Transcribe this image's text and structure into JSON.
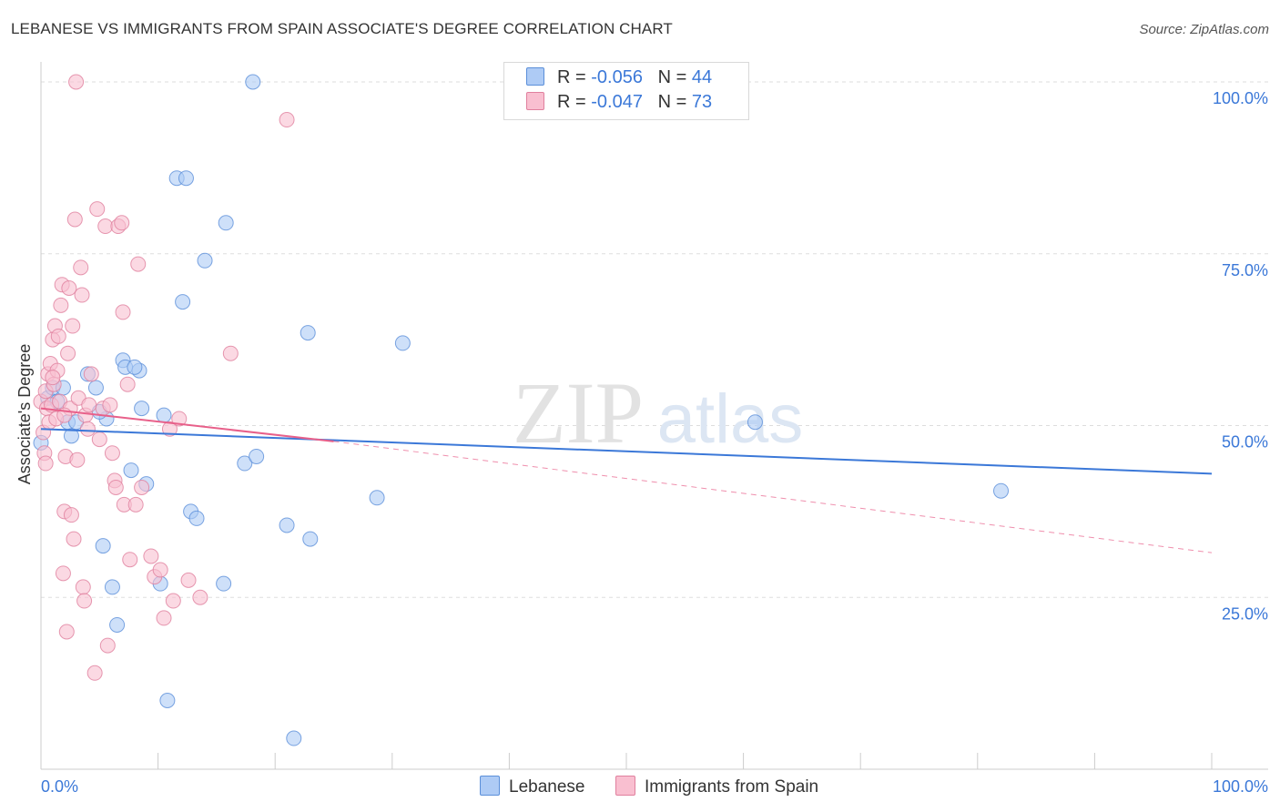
{
  "title": "LEBANESE VS IMMIGRANTS FROM SPAIN ASSOCIATE'S DEGREE CORRELATION CHART",
  "source": "Source: ZipAtlas.com",
  "watermark": {
    "zip": "ZIP",
    "atlas": "atlas"
  },
  "legend": {
    "series": [
      {
        "r_label": "R = ",
        "r_value": "-0.056",
        "n_label": "N = ",
        "n_value": "44",
        "color": "#aecbf5",
        "border": "#5b8fd9"
      },
      {
        "r_label": "R = ",
        "r_value": "-0.047",
        "n_label": "N = ",
        "n_value": "73",
        "color": "#f9bfd0",
        "border": "#e0809e"
      }
    ]
  },
  "bottom_legend": [
    "Lebanese",
    "Immigrants from Spain"
  ],
  "chart_data": {
    "type": "scatter",
    "title": "LEBANESE VS IMMIGRANTS FROM SPAIN ASSOCIATE'S DEGREE CORRELATION CHART",
    "xlabel": "",
    "ylabel": "Associate's Degree",
    "xlim": [
      0,
      100
    ],
    "ylim": [
      0,
      100
    ],
    "x_tick_labels": [
      "0.0%",
      "100.0%"
    ],
    "y_ticks": [
      25,
      50,
      75,
      100
    ],
    "y_tick_labels": [
      "25.0%",
      "50.0%",
      "75.0%",
      "100.0%"
    ],
    "grid": true,
    "series": [
      {
        "name": "Lebanese",
        "color": "#aecbf5",
        "edge": "#5b8fd9",
        "trend": {
          "x0": 0,
          "y0": 49.5,
          "x1": 100,
          "y1": 43.0,
          "color": "#3b78d8"
        },
        "points": [
          [
            0.0,
            47.5
          ],
          [
            0.6,
            54.0
          ],
          [
            1.0,
            55.5
          ],
          [
            1.4,
            53.5
          ],
          [
            1.9,
            55.5
          ],
          [
            2.3,
            50.5
          ],
          [
            2.6,
            48.5
          ],
          [
            3.0,
            50.5
          ],
          [
            4.0,
            57.5
          ],
          [
            4.7,
            55.5
          ],
          [
            5.3,
            32.5
          ],
          [
            5.6,
            51.0
          ],
          [
            6.1,
            26.5
          ],
          [
            6.5,
            21.0
          ],
          [
            7.0,
            59.5
          ],
          [
            7.2,
            58.5
          ],
          [
            7.7,
            43.5
          ],
          [
            8.4,
            58.0
          ],
          [
            8.6,
            52.5
          ],
          [
            9.0,
            41.5
          ],
          [
            10.2,
            27.0
          ],
          [
            10.5,
            51.5
          ],
          [
            10.8,
            10.0
          ],
          [
            11.6,
            86.0
          ],
          [
            12.1,
            68.0
          ],
          [
            12.4,
            86.0
          ],
          [
            12.8,
            37.5
          ],
          [
            13.3,
            36.5
          ],
          [
            14.0,
            74.0
          ],
          [
            15.6,
            27.0
          ],
          [
            15.8,
            79.5
          ],
          [
            17.4,
            44.5
          ],
          [
            18.1,
            100.0
          ],
          [
            18.4,
            45.5
          ],
          [
            21.0,
            35.5
          ],
          [
            21.6,
            4.5
          ],
          [
            22.8,
            63.5
          ],
          [
            23.0,
            33.5
          ],
          [
            28.7,
            39.5
          ],
          [
            30.9,
            62.0
          ],
          [
            61.0,
            50.5
          ],
          [
            82.0,
            40.5
          ],
          [
            8.0,
            58.5
          ],
          [
            5.0,
            52.0
          ]
        ]
      },
      {
        "name": "Immigrants from Spain",
        "color": "#f9bfd0",
        "edge": "#e0809e",
        "trend": {
          "x0": 0,
          "y0": 52.5,
          "x1": 25,
          "y1": 47.7,
          "color": "#e8608a",
          "dash_to_x": 100,
          "dash_to_y": 31.5
        },
        "points": [
          [
            0.0,
            53.5
          ],
          [
            0.2,
            49.0
          ],
          [
            0.3,
            46.0
          ],
          [
            0.4,
            55.0
          ],
          [
            0.5,
            52.5
          ],
          [
            0.6,
            57.5
          ],
          [
            0.7,
            50.5
          ],
          [
            0.8,
            59.0
          ],
          [
            0.9,
            53.0
          ],
          [
            1.0,
            62.5
          ],
          [
            1.1,
            56.0
          ],
          [
            1.2,
            64.5
          ],
          [
            1.3,
            51.0
          ],
          [
            1.4,
            58.0
          ],
          [
            1.5,
            63.0
          ],
          [
            1.6,
            53.5
          ],
          [
            1.7,
            67.5
          ],
          [
            1.8,
            70.5
          ],
          [
            1.9,
            28.5
          ],
          [
            2.0,
            37.5
          ],
          [
            2.1,
            45.5
          ],
          [
            2.2,
            20.0
          ],
          [
            2.3,
            60.5
          ],
          [
            2.4,
            70.0
          ],
          [
            2.5,
            52.5
          ],
          [
            2.6,
            37.0
          ],
          [
            2.7,
            64.5
          ],
          [
            2.8,
            33.5
          ],
          [
            2.9,
            80.0
          ],
          [
            3.0,
            100.0
          ],
          [
            3.2,
            54.0
          ],
          [
            3.4,
            73.0
          ],
          [
            3.5,
            69.0
          ],
          [
            3.6,
            26.5
          ],
          [
            3.7,
            24.5
          ],
          [
            3.8,
            51.5
          ],
          [
            4.0,
            49.5
          ],
          [
            4.3,
            57.5
          ],
          [
            4.6,
            14.0
          ],
          [
            4.8,
            81.5
          ],
          [
            5.0,
            48.0
          ],
          [
            5.3,
            52.5
          ],
          [
            5.5,
            79.0
          ],
          [
            5.7,
            18.0
          ],
          [
            6.1,
            46.0
          ],
          [
            6.3,
            42.0
          ],
          [
            6.4,
            41.0
          ],
          [
            6.6,
            79.0
          ],
          [
            6.9,
            79.5
          ],
          [
            7.0,
            66.5
          ],
          [
            7.1,
            38.5
          ],
          [
            7.4,
            56.0
          ],
          [
            7.6,
            30.5
          ],
          [
            8.1,
            38.5
          ],
          [
            8.3,
            73.5
          ],
          [
            8.6,
            41.0
          ],
          [
            9.4,
            31.0
          ],
          [
            9.7,
            28.0
          ],
          [
            10.2,
            29.0
          ],
          [
            10.5,
            22.0
          ],
          [
            11.0,
            49.5
          ],
          [
            11.3,
            24.5
          ],
          [
            11.8,
            51.0
          ],
          [
            12.6,
            27.5
          ],
          [
            13.6,
            25.0
          ],
          [
            16.2,
            60.5
          ],
          [
            21.0,
            94.5
          ],
          [
            1.0,
            57.0
          ],
          [
            2.0,
            51.5
          ],
          [
            3.1,
            45.0
          ],
          [
            4.1,
            53.0
          ],
          [
            5.9,
            53.0
          ],
          [
            0.4,
            44.5
          ]
        ]
      }
    ]
  }
}
